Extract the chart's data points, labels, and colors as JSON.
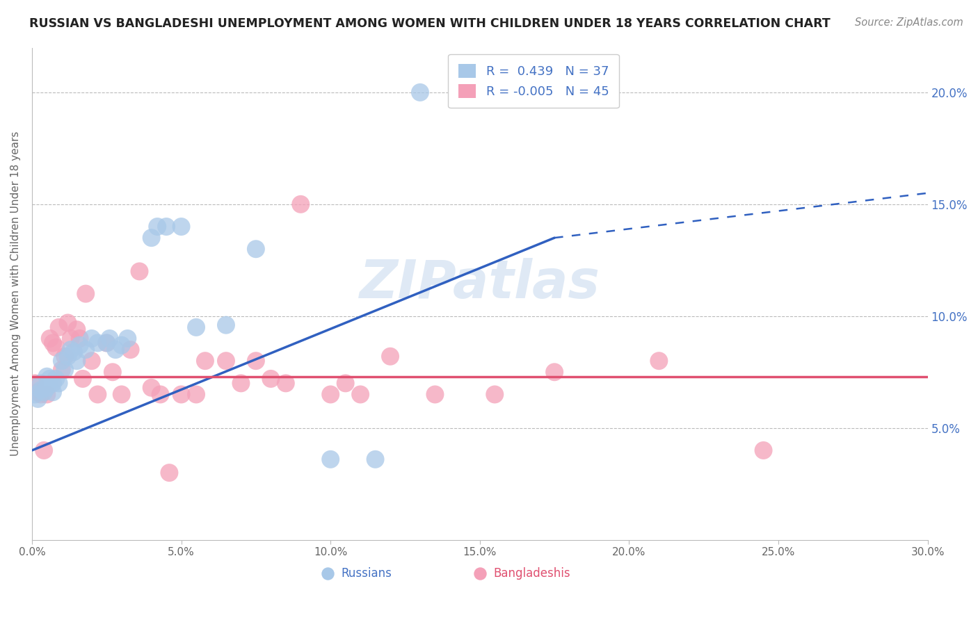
{
  "title": "RUSSIAN VS BANGLADESHI UNEMPLOYMENT AMONG WOMEN WITH CHILDREN UNDER 18 YEARS CORRELATION CHART",
  "source": "Source: ZipAtlas.com",
  "ylabel": "Unemployment Among Women with Children Under 18 years",
  "xlim": [
    0,
    0.3
  ],
  "ylim": [
    0,
    0.22
  ],
  "russian_R": 0.439,
  "russian_N": 37,
  "bangladeshi_R": -0.005,
  "bangladeshi_N": 45,
  "blue_color": "#a8c8e8",
  "pink_color": "#f4a0b8",
  "blue_line_color": "#3060c0",
  "pink_line_color": "#e05070",
  "watermark": "ZIPatlas",
  "legend_label_russian": "Russians",
  "legend_label_bangladeshi": "Bangladeshis",
  "russian_x": [
    0.001,
    0.002,
    0.003,
    0.003,
    0.004,
    0.005,
    0.005,
    0.006,
    0.007,
    0.007,
    0.008,
    0.009,
    0.01,
    0.011,
    0.012,
    0.013,
    0.014,
    0.015,
    0.016,
    0.018,
    0.02,
    0.022,
    0.025,
    0.026,
    0.028,
    0.03,
    0.032,
    0.04,
    0.042,
    0.045,
    0.05,
    0.055,
    0.065,
    0.075,
    0.1,
    0.115,
    0.13
  ],
  "russian_y": [
    0.065,
    0.063,
    0.067,
    0.07,
    0.066,
    0.068,
    0.073,
    0.072,
    0.066,
    0.07,
    0.072,
    0.07,
    0.08,
    0.076,
    0.082,
    0.085,
    0.084,
    0.08,
    0.087,
    0.085,
    0.09,
    0.088,
    0.088,
    0.09,
    0.085,
    0.087,
    0.09,
    0.135,
    0.14,
    0.14,
    0.14,
    0.095,
    0.096,
    0.13,
    0.036,
    0.036,
    0.2
  ],
  "bangladeshi_x": [
    0.001,
    0.002,
    0.003,
    0.004,
    0.005,
    0.006,
    0.007,
    0.008,
    0.009,
    0.01,
    0.011,
    0.012,
    0.013,
    0.015,
    0.016,
    0.017,
    0.018,
    0.02,
    0.022,
    0.025,
    0.027,
    0.03,
    0.033,
    0.036,
    0.04,
    0.043,
    0.046,
    0.05,
    0.055,
    0.058,
    0.065,
    0.07,
    0.075,
    0.08,
    0.085,
    0.09,
    0.1,
    0.105,
    0.11,
    0.12,
    0.135,
    0.155,
    0.175,
    0.21,
    0.245
  ],
  "bangladeshi_y": [
    0.07,
    0.066,
    0.065,
    0.04,
    0.065,
    0.09,
    0.088,
    0.086,
    0.095,
    0.076,
    0.082,
    0.097,
    0.09,
    0.094,
    0.09,
    0.072,
    0.11,
    0.08,
    0.065,
    0.088,
    0.075,
    0.065,
    0.085,
    0.12,
    0.068,
    0.065,
    0.03,
    0.065,
    0.065,
    0.08,
    0.08,
    0.07,
    0.08,
    0.072,
    0.07,
    0.15,
    0.065,
    0.07,
    0.065,
    0.082,
    0.065,
    0.065,
    0.075,
    0.08,
    0.04
  ],
  "trend_rus_x0": 0.0,
  "trend_rus_x1": 0.175,
  "trend_rus_y0": 0.04,
  "trend_rus_y1": 0.135,
  "trend_rus_dash_x0": 0.175,
  "trend_rus_dash_x1": 0.3,
  "trend_rus_dash_y0": 0.135,
  "trend_rus_dash_y1": 0.155,
  "trend_ban_x0": 0.0,
  "trend_ban_x1": 0.3,
  "trend_ban_y0": 0.073,
  "trend_ban_y1": 0.073
}
